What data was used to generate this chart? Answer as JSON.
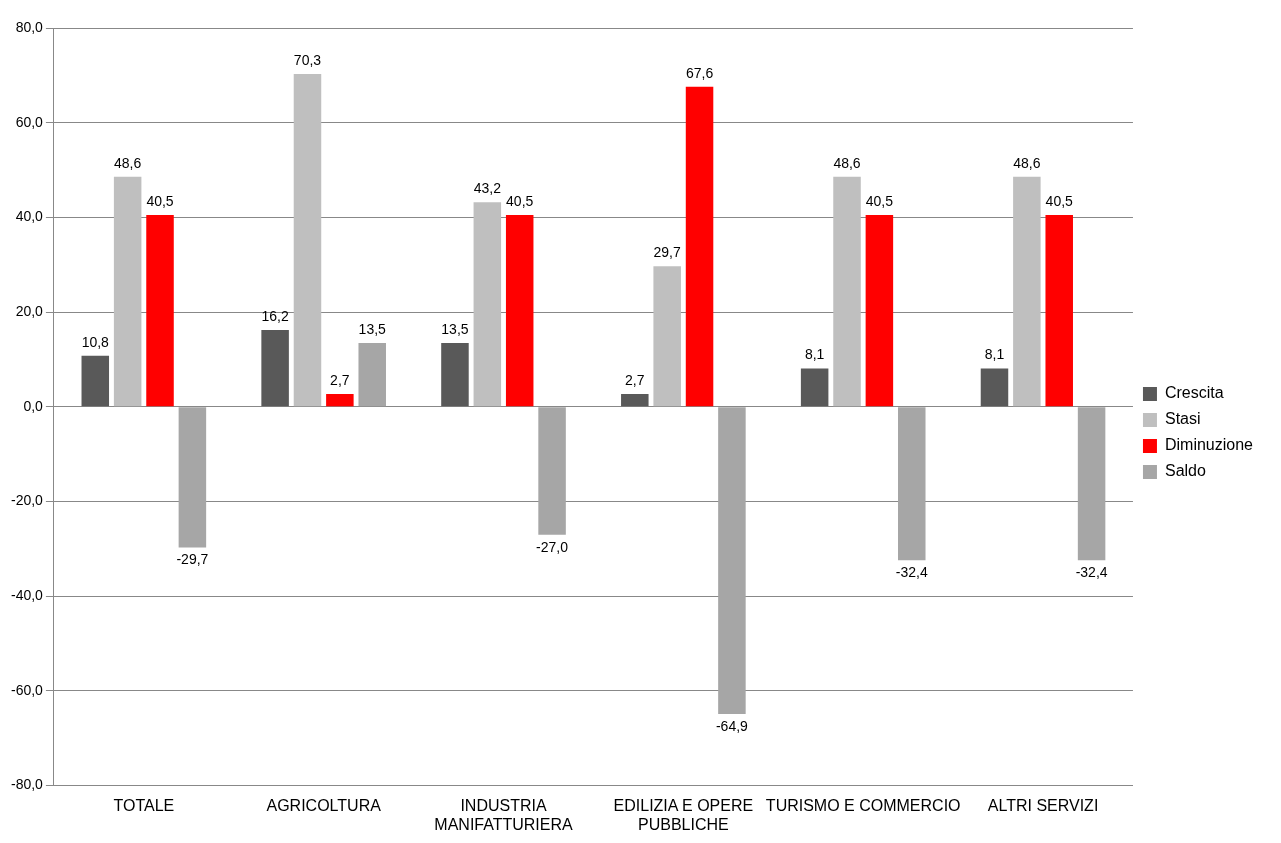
{
  "chart_data": {
    "type": "bar",
    "categories": [
      "TOTALE",
      "AGRICOLTURA",
      "INDUSTRIA MANIFATTURIERA",
      "EDILIZIA E OPERE PUBBLICHE",
      "TURISMO E COMMERCIO",
      "ALTRI SERVIZI"
    ],
    "series": [
      {
        "name": "Crescita",
        "color": "#595959",
        "values": [
          10.8,
          16.2,
          13.5,
          2.7,
          8.1,
          8.1
        ],
        "value_labels": [
          "10,8",
          "16,2",
          "13,5",
          "2,7",
          "8,1",
          "8,1"
        ]
      },
      {
        "name": "Stasi",
        "color": "#bfbfbf",
        "values": [
          48.6,
          70.3,
          43.2,
          29.7,
          48.6,
          48.6
        ],
        "value_labels": [
          "48,6",
          "70,3",
          "43,2",
          "29,7",
          "48,6",
          "48,6"
        ]
      },
      {
        "name": "Diminuzione",
        "color": "#ff0000",
        "values": [
          40.5,
          2.7,
          40.5,
          67.6,
          40.5,
          40.5
        ],
        "value_labels": [
          "40,5",
          "2,7",
          "40,5",
          "67,6",
          "40,5",
          "40,5"
        ]
      },
      {
        "name": "Saldo",
        "color": "#a6a6a6",
        "values": [
          -29.7,
          13.5,
          -27.0,
          -64.9,
          -32.4,
          -32.4
        ],
        "value_labels": [
          "-29,7",
          "13,5",
          "-27,0",
          "-64,9",
          "-32,4",
          "-32,4"
        ]
      }
    ],
    "ylim": [
      -80,
      80
    ],
    "yticks": [
      {
        "value": -80,
        "label": "-80,0"
      },
      {
        "value": -60,
        "label": "-60,0"
      },
      {
        "value": -40,
        "label": "-40,0"
      },
      {
        "value": -20,
        "label": "-20,0"
      },
      {
        "value": 0,
        "label": "0,0"
      },
      {
        "value": 20,
        "label": "20,0"
      },
      {
        "value": 40,
        "label": "40,0"
      },
      {
        "value": 60,
        "label": "60,0"
      },
      {
        "value": 80,
        "label": "80,0"
      }
    ],
    "grid": "y",
    "legend": "right"
  }
}
